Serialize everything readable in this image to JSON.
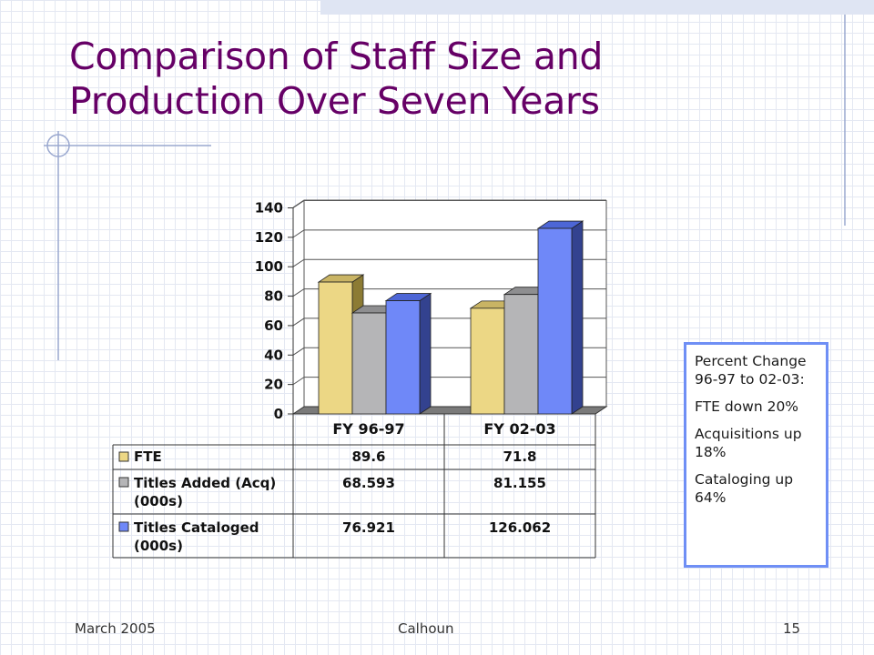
{
  "slide": {
    "title_lines": [
      "Comparison of Staff Size and",
      "Production Over Seven Years"
    ],
    "footer": {
      "date": "March 2005",
      "author": "Calhoun",
      "page": "15"
    }
  },
  "callout": {
    "heading": "Percent Change 96-97 to 02-03:",
    "lines": [
      "FTE down 20%",
      "Acquisitions up 18%",
      "Cataloging up 64%"
    ]
  },
  "colors": {
    "title": "#660066",
    "fte": "#ecd785",
    "titles_added": "#b5b5b7",
    "titles_cataloged": "#6f88f8",
    "callout_border": "#6f8ff5"
  },
  "chart_data": {
    "type": "bar",
    "categories": [
      "FY 96-97",
      "FY 02-03"
    ],
    "series": [
      {
        "name": "FTE",
        "values": [
          89.6,
          71.8
        ]
      },
      {
        "name": "Titles Added (Acq) (000s)",
        "values": [
          68.593,
          81.155
        ]
      },
      {
        "name": "Titles Cataloged (000s)",
        "values": [
          76.921,
          126.062
        ]
      }
    ],
    "value_labels": [
      [
        "89.6",
        "71.8"
      ],
      [
        "68.593",
        "81.155"
      ],
      [
        "76.921",
        "126.062"
      ]
    ],
    "ylim": [
      0,
      140
    ],
    "yticks": [
      0,
      20,
      40,
      60,
      80,
      100,
      120,
      140
    ],
    "grid": true,
    "legend": "data-table"
  }
}
